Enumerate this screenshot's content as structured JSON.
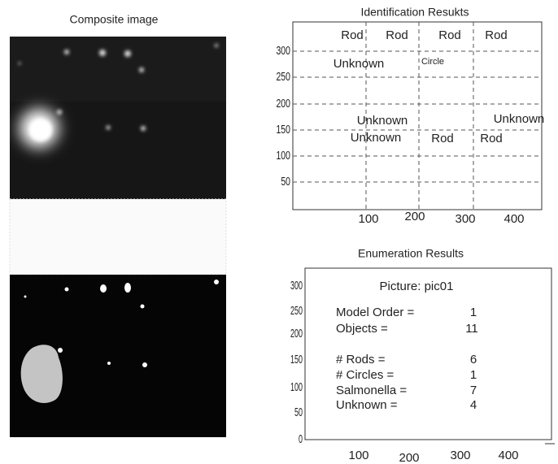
{
  "composite": {
    "title": "Composite image"
  },
  "identification": {
    "title": "Identification Resukts",
    "yticks": [
      300,
      250,
      200,
      150,
      100,
      50
    ],
    "xticks": [
      100,
      200,
      300,
      400
    ],
    "labels": [
      "Rod",
      "Rod",
      "Rod",
      "Rod",
      "Unknown",
      "Circle",
      "Unknown",
      "Unknown",
      "Unknown",
      "Rod",
      "Rod"
    ]
  },
  "enumeration": {
    "title": "Enumeration Results",
    "yticks": [
      300,
      250,
      200,
      150,
      100,
      50,
      0
    ],
    "xticks": [
      100,
      200,
      300,
      400
    ],
    "picture": "Picture: pic01",
    "rows": [
      [
        "Model Order =",
        1
      ],
      [
        "Objects =",
        11
      ],
      [
        "# Rods =",
        6
      ],
      [
        "# Circles =",
        1
      ],
      [
        "Salmonella =",
        7
      ],
      [
        "Unknown =",
        4
      ]
    ]
  }
}
